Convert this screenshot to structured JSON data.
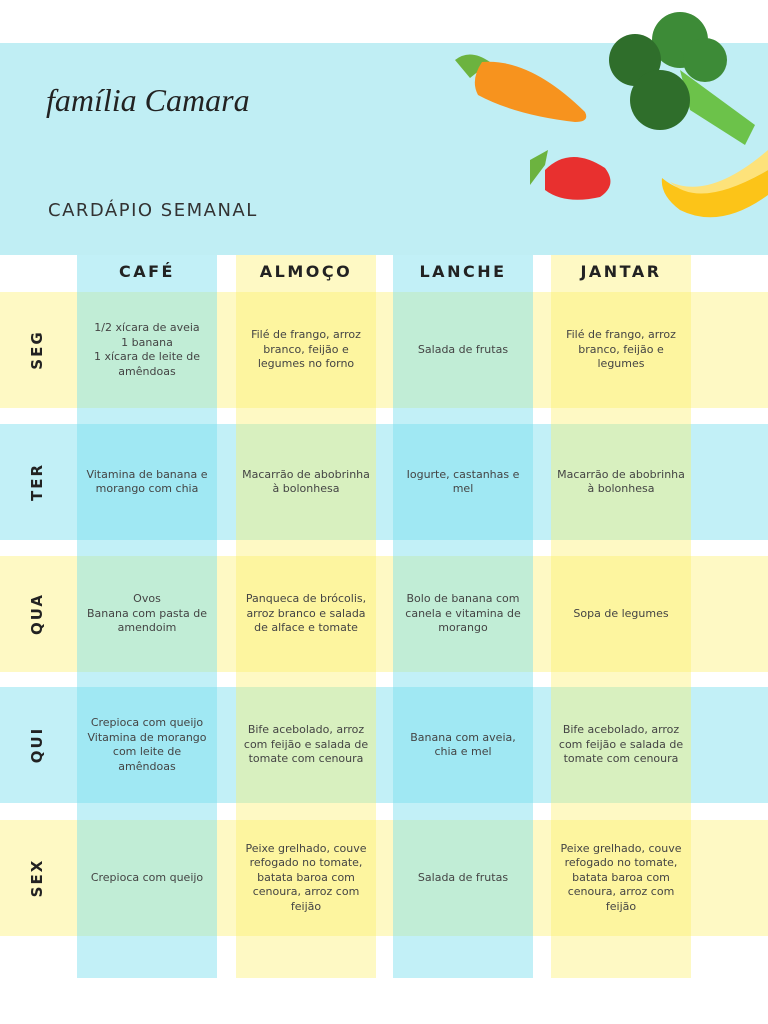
{
  "header": {
    "title": "família Camara",
    "subtitle": "CARDÁPIO SEMANAL"
  },
  "table": {
    "columns": [
      "CAFÉ",
      "ALMOÇO",
      "LANCHE",
      "JANTAR"
    ],
    "rows": [
      {
        "day": "SEG",
        "cells": [
          "1/2 xícara de aveia\n1 banana\n1 xícara de leite de amêndoas",
          "Filé de frango, arroz branco, feijão e legumes no forno",
          "Salada de frutas",
          "Filé de frango, arroz branco, feijão e legumes"
        ]
      },
      {
        "day": "TER",
        "cells": [
          "Vitamina de banana e morango com chia",
          "Macarrão de abobrinha à bolonhesa",
          "Iogurte, castanhas e mel",
          "Macarrão de abobrinha à bolonhesa"
        ]
      },
      {
        "day": "QUA",
        "cells": [
          "Ovos\nBanana com pasta de amendoim",
          "Panqueca de brócolis, arroz branco e salada de alface e tomate",
          "Bolo de banana com canela e vitamina de morango",
          "Sopa de legumes"
        ]
      },
      {
        "day": "QUI",
        "cells": [
          "Crepioca com queijo\nVitamina de morango com leite de amêndoas",
          "Bife acebolado, arroz com feijão e salada de tomate com cenoura",
          "Banana com aveia, chia e mel",
          "Bife acebolado, arroz com feijão e salada de tomate com cenoura"
        ]
      },
      {
        "day": "SEX",
        "cells": [
          "Crepioca com queijo",
          "Peixe grelhado, couve refogado no tomate, batata baroa com cenoura, arroz com feijão",
          "Salada de frutas",
          "Peixe grelhado, couve refogado no tomate, batata baroa com cenoura, arroz com feijão"
        ]
      }
    ]
  }
}
